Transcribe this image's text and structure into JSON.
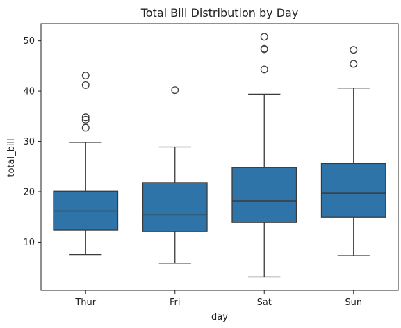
{
  "chart_data": {
    "type": "box",
    "title": "Total Bill Distribution by Day",
    "xlabel": "day",
    "ylabel": "total_bill",
    "categories": [
      "Thur",
      "Fri",
      "Sat",
      "Sun"
    ],
    "ylim": [
      0.4,
      53.4
    ],
    "yticks": [
      10,
      20,
      30,
      40,
      50
    ],
    "grid": false,
    "legend": "none",
    "box_color": "#2f74a8",
    "line_color": "#3a3a3a",
    "boxes": [
      {
        "category": "Thur",
        "whisker_low": 7.5,
        "q1": 12.4,
        "median": 16.2,
        "q3": 20.1,
        "whisker_high": 29.8,
        "outliers": [
          32.7,
          34.3,
          34.8,
          41.2,
          43.1
        ]
      },
      {
        "category": "Fri",
        "whisker_low": 5.8,
        "q1": 12.1,
        "median": 15.4,
        "q3": 21.8,
        "whisker_high": 28.9,
        "outliers": [
          40.2
        ]
      },
      {
        "category": "Sat",
        "whisker_low": 3.1,
        "q1": 13.9,
        "median": 18.2,
        "q3": 24.8,
        "whisker_high": 39.4,
        "outliers": [
          44.3,
          48.3,
          48.4,
          50.8
        ]
      },
      {
        "category": "Sun",
        "whisker_low": 7.3,
        "q1": 15.0,
        "median": 19.7,
        "q3": 25.6,
        "whisker_high": 40.6,
        "outliers": [
          45.4,
          48.2
        ]
      }
    ]
  }
}
